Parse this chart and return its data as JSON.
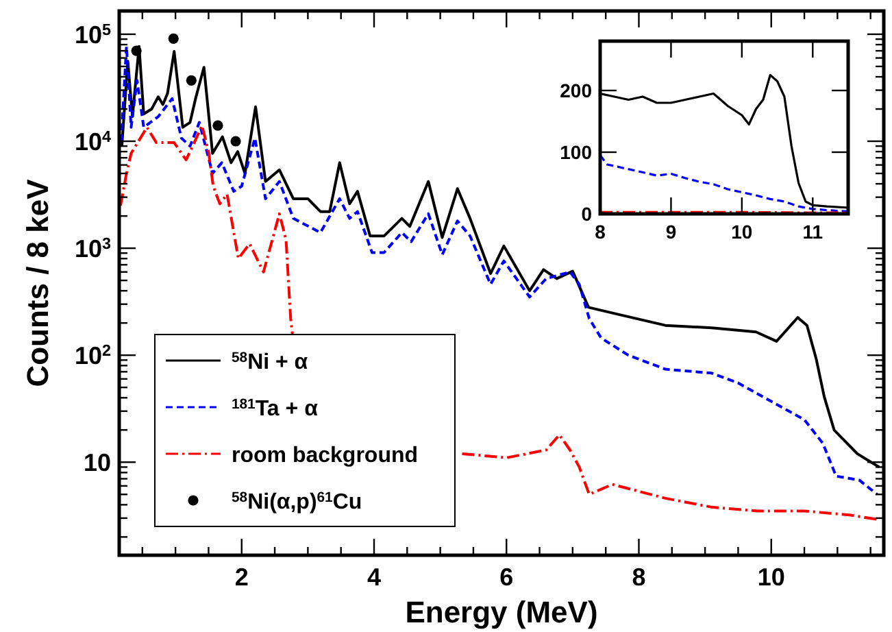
{
  "chart_data": [
    {
      "type": "line",
      "xlabel": "Energy (MeV)",
      "ylabel": "Counts / 8 keV",
      "log": "y",
      "legend": "bottom left",
      "marker": "none",
      "xlim": [
        0.15,
        11.7
      ],
      "ylim": [
        1.35,
        165000
      ],
      "xticks": [
        {
          "value": 0.5,
          "label": null
        },
        {
          "value": 1,
          "label": null
        },
        {
          "value": 1.5,
          "label": null
        },
        2,
        {
          "value": 2.5,
          "label": null
        },
        {
          "value": 3,
          "label": null
        },
        {
          "value": 3.5,
          "label": null
        },
        4,
        {
          "value": 4.5,
          "label": null
        },
        {
          "value": 5,
          "label": null
        },
        {
          "value": 5.5,
          "label": null
        },
        6,
        {
          "value": 6.5,
          "label": null
        },
        {
          "value": 7,
          "label": null
        },
        {
          "value": 7.5,
          "label": null
        },
        8,
        {
          "value": 8.5,
          "label": null
        },
        {
          "value": 9,
          "label": null
        },
        {
          "value": 9.5,
          "label": null
        },
        10,
        {
          "value": 10.5,
          "label": null
        },
        {
          "value": 11,
          "label": null
        },
        {
          "value": 11.5,
          "label": null
        }
      ],
      "yticks": [
        {
          "value": 2,
          "label": null
        },
        {
          "value": 3,
          "label": null
        },
        {
          "value": 4,
          "label": null
        },
        {
          "value": 5,
          "label": null
        },
        {
          "value": 6,
          "label": null
        },
        {
          "value": 7,
          "label": null
        },
        {
          "value": 8,
          "label": null
        },
        {
          "value": 9,
          "label": null
        },
        10,
        {
          "value": 20,
          "label": null
        },
        {
          "value": 30,
          "label": null
        },
        {
          "value": 40,
          "label": null
        },
        {
          "value": 50,
          "label": null
        },
        {
          "value": 60,
          "label": null
        },
        {
          "value": 70,
          "label": null
        },
        {
          "value": 80,
          "label": null
        },
        {
          "value": 90,
          "label": null
        },
        {
          "value": 100,
          "label": "10$^{2}$"
        },
        {
          "value": 200,
          "label": null
        },
        {
          "value": 300,
          "label": null
        },
        {
          "value": 400,
          "label": null
        },
        {
          "value": 500,
          "label": null
        },
        {
          "value": 600,
          "label": null
        },
        {
          "value": 700,
          "label": null
        },
        {
          "value": 800,
          "label": null
        },
        {
          "value": 900,
          "label": null
        },
        {
          "value": 1000,
          "label": "10$^{3}$"
        },
        {
          "value": 2000,
          "label": null
        },
        {
          "value": 3000,
          "label": null
        },
        {
          "value": 4000,
          "label": null
        },
        {
          "value": 5000,
          "label": null
        },
        {
          "value": 6000,
          "label": null
        },
        {
          "value": 7000,
          "label": null
        },
        {
          "value": 8000,
          "label": null
        },
        {
          "value": 9000,
          "label": null
        },
        {
          "value": 10000,
          "label": "10$^{4}$"
        },
        {
          "value": 20000,
          "label": null
        },
        {
          "value": 30000,
          "label": null
        },
        {
          "value": 40000,
          "label": null
        },
        {
          "value": 50000,
          "label": null
        },
        {
          "value": 60000,
          "label": null
        },
        {
          "value": 70000,
          "label": null
        },
        {
          "value": 80000,
          "label": null
        },
        {
          "value": 90000,
          "label": null
        },
        {
          "value": 100000,
          "label": "10$^{5}$"
        }
      ],
      "series": [
        {
          "name": "$^{58}$Ni + α",
          "color": "#000000",
          "line_style": "solid",
          "x": [
            0.19,
            0.28,
            0.35,
            0.45,
            0.52,
            0.64,
            0.74,
            0.81,
            0.88,
            0.98,
            1.11,
            1.22,
            1.31,
            1.43,
            1.56,
            1.71,
            1.84,
            1.94,
            2.05,
            2.21,
            2.36,
            2.57,
            2.78,
            3.0,
            3.19,
            3.33,
            3.48,
            3.63,
            3.75,
            3.94,
            4.15,
            4.42,
            4.54,
            4.82,
            5.03,
            5.26,
            5.45,
            5.76,
            5.96,
            6.35,
            6.56,
            6.76,
            7.0,
            7.24,
            7.7,
            8.4,
            9.1,
            9.77,
            10.08,
            10.4,
            10.54,
            10.68,
            10.8,
            10.95,
            11.3,
            11.63
          ],
          "values": [
            9000,
            56000,
            17000,
            77000,
            18000,
            20000,
            26000,
            22000,
            28000,
            69000,
            13500,
            15000,
            26000,
            49000,
            7700,
            11000,
            6300,
            8000,
            5000,
            21000,
            4200,
            5400,
            2900,
            2900,
            2200,
            2200,
            6300,
            2600,
            3400,
            1300,
            1300,
            1900,
            1600,
            4200,
            1260,
            3600,
            1900,
            580,
            1050,
            400,
            630,
            520,
            610,
            280,
            240,
            190,
            180,
            165,
            135,
            225,
            190,
            92,
            41,
            20,
            12,
            9
          ]
        },
        {
          "name": "$^{181}$Ta + α",
          "color": "#0000ff",
          "line_style": "dashed",
          "x": [
            0.18,
            0.26,
            0.33,
            0.42,
            0.52,
            0.74,
            0.95,
            1.09,
            1.22,
            1.36,
            1.56,
            1.7,
            1.88,
            2.0,
            2.2,
            2.36,
            2.57,
            2.78,
            3.19,
            3.48,
            3.63,
            3.75,
            3.97,
            4.15,
            4.42,
            4.56,
            4.82,
            5.03,
            5.26,
            5.45,
            5.76,
            5.96,
            6.35,
            6.6,
            6.96,
            7.1,
            7.25,
            7.43,
            7.84,
            8.4,
            9.1,
            9.5,
            10.07,
            10.5,
            10.78,
            10.98,
            11.33,
            11.6
          ],
          "values": [
            10000,
            77000,
            13500,
            37000,
            13500,
            17000,
            25000,
            10700,
            9000,
            15000,
            5000,
            6300,
            3400,
            3800,
            10700,
            2900,
            4200,
            1900,
            1400,
            2900,
            1900,
            2200,
            910,
            910,
            1400,
            1150,
            2100,
            870,
            1800,
            1300,
            460,
            760,
            350,
            520,
            600,
            460,
            220,
            145,
            100,
            74,
            68,
            55,
            35,
            25,
            15,
            7.4,
            6.8,
            5
          ]
        },
        {
          "name": "room background",
          "color": "#ff0000",
          "line_style": "dashdot",
          "x": [
            0.17,
            0.26,
            0.33,
            0.57,
            0.71,
            0.98,
            1.16,
            1.26,
            1.4,
            1.5,
            1.57,
            1.67,
            1.78,
            1.95,
            2.12,
            2.33,
            2.57,
            2.67,
            2.74,
            2.77,
            4.0,
            5.33,
            6.0,
            6.6,
            6.8,
            6.96,
            7.1,
            7.25,
            7.6,
            8.4,
            9.1,
            9.8,
            10.5,
            11.2,
            11.63
          ],
          "values": [
            2500,
            5000,
            7700,
            13500,
            9700,
            9700,
            6700,
            9000,
            14000,
            8000,
            3800,
            2600,
            3200,
            800,
            1100,
            600,
            2100,
            1200,
            220,
            150,
            null,
            12,
            11,
            13,
            18,
            13,
            9,
            5,
            6.2,
            4.6,
            3.8,
            3.5,
            3.5,
            3.2,
            2.9
          ]
        },
        {
          "type": "scatter",
          "marker": "circle",
          "name": "$^{58}$Ni(α,p)$^{61}$Cu",
          "color": "#000000",
          "x": [
            0.41,
            0.97,
            1.24,
            1.64,
            1.91
          ],
          "values": [
            70000,
            91000,
            37000,
            14000,
            10000
          ]
        }
      ]
    },
    {
      "type": "line",
      "marker": "none",
      "xlim": [
        8,
        11.5
      ],
      "ylim": [
        0,
        280
      ],
      "xticks": [
        8,
        9,
        10,
        11
      ],
      "yticks": [
        0,
        100,
        200
      ],
      "series": [
        {
          "color": "#000000",
          "line_style": "solid",
          "x": [
            8.0,
            8.2,
            8.4,
            8.6,
            8.8,
            9.0,
            9.2,
            9.4,
            9.6,
            9.8,
            10.0,
            10.1,
            10.2,
            10.3,
            10.4,
            10.5,
            10.6,
            10.7,
            10.8,
            10.9,
            11.0,
            11.2,
            11.5
          ],
          "values": [
            195,
            190,
            185,
            190,
            180,
            180,
            185,
            190,
            195,
            175,
            160,
            145,
            170,
            185,
            225,
            215,
            190,
            110,
            50,
            20,
            14,
            12,
            10
          ]
        },
        {
          "color": "#0000ff",
          "line_style": "dashed",
          "x": [
            8.0,
            8.1,
            8.3,
            8.5,
            8.8,
            9.0,
            9.2,
            9.4,
            9.6,
            9.8,
            10.0,
            10.2,
            10.4,
            10.6,
            10.8,
            11.0,
            11.2,
            11.5
          ],
          "values": [
            95,
            80,
            75,
            70,
            62,
            65,
            58,
            52,
            48,
            40,
            35,
            30,
            24,
            20,
            12,
            8,
            6,
            4
          ]
        },
        {
          "color": "#ff0000",
          "line_style": "dashdot",
          "x": [
            8.0,
            9.0,
            10.0,
            11.0,
            11.5
          ],
          "values": [
            3,
            3,
            3,
            2,
            2
          ]
        }
      ]
    }
  ]
}
